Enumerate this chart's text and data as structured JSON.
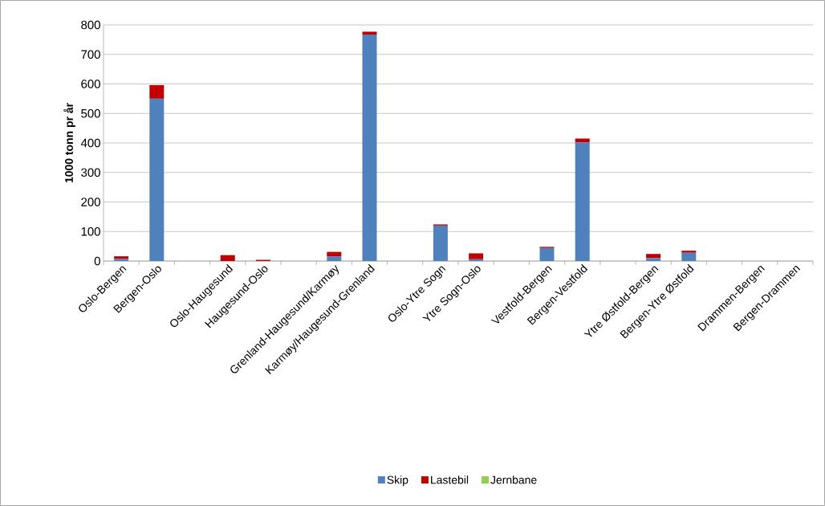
{
  "chart_data": {
    "type": "bar",
    "stacked": true,
    "ylabel": "1000 tonn pr år",
    "categories": [
      "Oslo-Bergen",
      "Bergen-Oslo",
      null,
      "Oslo-Haugesund",
      "Haugesund-Oslo",
      null,
      "Grenland-Haugesund/Karmøy",
      "Karmøy/Haugesund-Grenland",
      null,
      "Oslo-Ytre Sogn",
      "Ytre Sogn-Oslo",
      null,
      "Vestfold-Bergen",
      "Bergen-Vestfold",
      null,
      "Ytre Østfold-Bergen",
      "Bergen-Ytre Østfold",
      null,
      "Drammen-Bergen",
      "Bergen-Drammen"
    ],
    "series": [
      {
        "name": "Skip",
        "color": "#4f81bd",
        "values": [
          7,
          550,
          null,
          0,
          0,
          null,
          16,
          767,
          null,
          120,
          6,
          null,
          44,
          402,
          null,
          10,
          28,
          null,
          0,
          0
        ]
      },
      {
        "name": "Lastebil",
        "color": "#c00000",
        "values": [
          9,
          46,
          null,
          20,
          4,
          null,
          15,
          10,
          null,
          4,
          20,
          null,
          4,
          13,
          null,
          14,
          7,
          null,
          0,
          0
        ]
      },
      {
        "name": "Jernbane",
        "color": "#92d050",
        "values": [
          0,
          0,
          null,
          0,
          0,
          null,
          0,
          0,
          null,
          0,
          0,
          null,
          0,
          0,
          null,
          0,
          0,
          null,
          0,
          0
        ]
      }
    ],
    "ylim": [
      0,
      800
    ],
    "yticks": [
      0,
      100,
      200,
      300,
      400,
      500,
      600,
      700,
      800
    ],
    "grid": "y",
    "legend": "bottom"
  }
}
